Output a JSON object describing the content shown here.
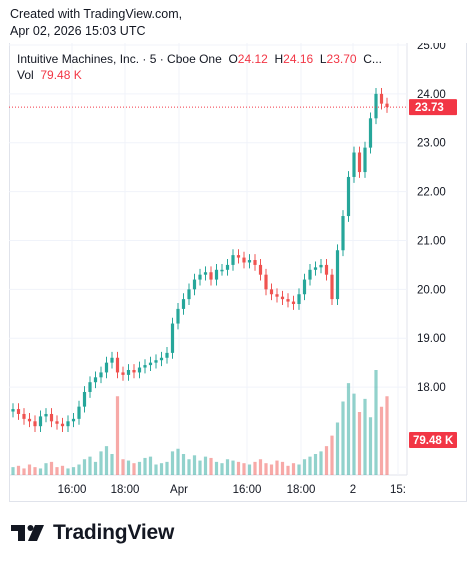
{
  "header": {
    "line1": "Created with TradingView.com,",
    "line2": "Apr 02, 2026 15:03 UTC"
  },
  "legend": {
    "symbol": "Intuitive Machines, Inc. · 5 · Cboe One",
    "o_label": "O",
    "o_value": "24.12",
    "h_label": "H",
    "h_value": "24.16",
    "l_label": "L",
    "l_value": "23.70",
    "c_label": "C...",
    "vol_label": "Vol",
    "vol_value": "79.48 K"
  },
  "colors": {
    "up": "#26a69a",
    "down": "#ef5350",
    "price_line": "#f23645",
    "grid": "#f0f3fa",
    "text": "#131722"
  },
  "chart_data": {
    "type": "candlestick",
    "y_ticks": [
      "25.00",
      "24.00",
      "23.00",
      "22.00",
      "21.00",
      "20.00",
      "19.00",
      "18.00"
    ],
    "ylim": [
      17.0,
      25.0
    ],
    "x_ticks": [
      "16:00",
      "18:00",
      "Apr",
      "16:00",
      "18:00",
      "2",
      "15:"
    ],
    "last_price": "23.73",
    "last_volume": "79.48 K",
    "price_path": [
      17.55,
      17.45,
      17.35,
      17.3,
      17.2,
      17.4,
      17.45,
      17.3,
      17.25,
      17.2,
      17.3,
      17.35,
      17.6,
      17.9,
      18.1,
      18.2,
      18.3,
      18.5,
      18.6,
      18.3,
      18.25,
      18.35,
      18.3,
      18.4,
      18.45,
      18.5,
      18.55,
      18.6,
      18.7,
      19.3,
      19.6,
      19.8,
      20.0,
      20.2,
      20.3,
      20.35,
      20.2,
      20.4,
      20.4,
      20.5,
      20.7,
      20.65,
      20.55,
      20.6,
      20.5,
      20.3,
      20.0,
      19.9,
      19.85,
      19.8,
      19.75,
      19.7,
      19.9,
      20.2,
      20.4,
      20.45,
      20.5,
      20.3,
      19.8,
      20.8,
      21.5,
      22.3,
      22.8,
      22.4,
      22.9,
      23.5,
      24.0,
      23.8,
      23.73
    ],
    "volumes": [
      6,
      7,
      5,
      8,
      6,
      5,
      9,
      10,
      6,
      7,
      5,
      6,
      8,
      12,
      14,
      10,
      18,
      22,
      16,
      60,
      12,
      11,
      9,
      10,
      13,
      14,
      8,
      9,
      10,
      18,
      20,
      16,
      12,
      15,
      11,
      14,
      13,
      10,
      9,
      12,
      11,
      10,
      9,
      8,
      10,
      12,
      9,
      8,
      11,
      10,
      7,
      9,
      8,
      12,
      14,
      16,
      18,
      22,
      30,
      40,
      56,
      70,
      62,
      48,
      58,
      44,
      80,
      52,
      60
    ]
  }
}
